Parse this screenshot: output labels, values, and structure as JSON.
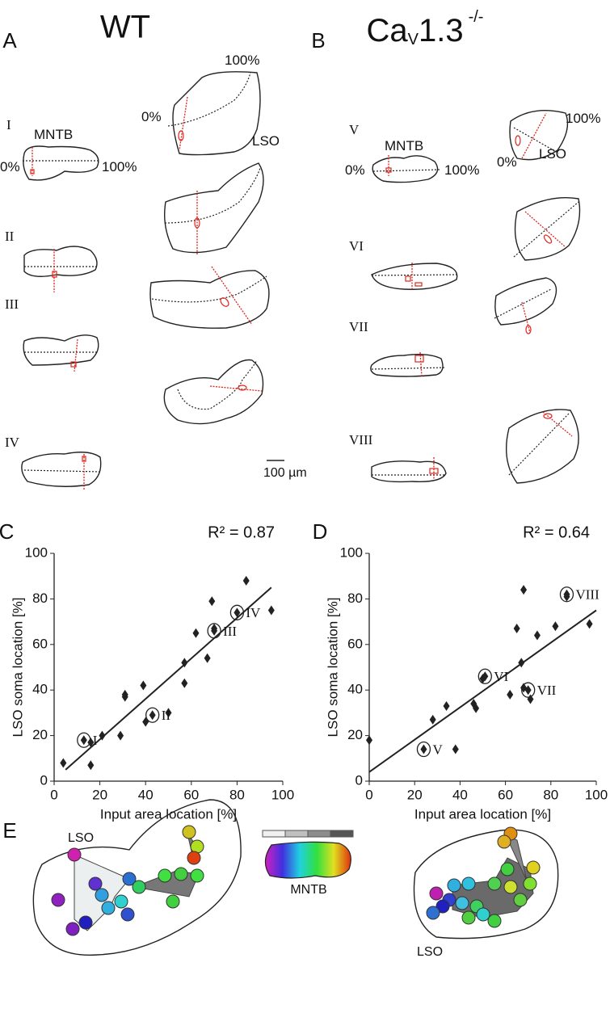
{
  "panel_a": {
    "label": "A",
    "title": "WT",
    "mntb": "MNTB",
    "lso": "LSO",
    "mntb_zero": "0%",
    "mntb_hundred": "100%",
    "lso_zero": "0%",
    "lso_hundred": "100%",
    "rows": [
      "I",
      "II",
      "III",
      "IV"
    ]
  },
  "panel_b": {
    "label": "B",
    "title_main": "Ca",
    "title_sub": "V",
    "title_rest": "1.3",
    "title_sup": "-/-",
    "mntb": "MNTB",
    "lso": "LSO",
    "mntb_zero": "0%",
    "mntb_hundred": "100%",
    "lso_zero": "0%",
    "lso_hundred": "100%",
    "rows": [
      "V",
      "VI",
      "VII",
      "VIII"
    ]
  },
  "scale_bar": "100 µm",
  "chart_data": [
    {
      "type": "scatter",
      "label": "C",
      "annotation": "R² = 0.87",
      "xlabel": "Input area location [%]",
      "ylabel": "LSO soma location [%]",
      "color": "#222222",
      "xlim": [
        0,
        100
      ],
      "xticks": [
        0,
        20,
        40,
        60,
        80,
        100
      ],
      "ylim": [
        0,
        100
      ],
      "yticks": [
        0,
        20,
        40,
        60,
        80,
        100
      ],
      "x": [
        4,
        13,
        16,
        16,
        21,
        29,
        31,
        31,
        39,
        40,
        43,
        50,
        57,
        57,
        62,
        67,
        69,
        70,
        70,
        80,
        84,
        95
      ],
      "y": [
        8,
        18,
        17,
        7,
        20,
        20,
        38,
        37,
        42,
        26,
        29,
        30,
        52,
        43,
        65,
        54,
        79,
        66,
        67,
        74,
        88,
        75
      ],
      "fit": {
        "x": [
          5,
          95
        ],
        "y": [
          5,
          85
        ]
      },
      "labeled_points": [
        {
          "label": "I",
          "x": 13,
          "y": 18
        },
        {
          "label": "II",
          "x": 43,
          "y": 29
        },
        {
          "label": "III",
          "x": 70,
          "y": 66
        },
        {
          "label": "IV",
          "x": 80,
          "y": 74
        }
      ]
    },
    {
      "type": "scatter",
      "label": "D",
      "annotation": "R² = 0.64",
      "xlabel": "Input area location [%]",
      "ylabel": "LSO soma location [%]",
      "color": "#222222",
      "xlim": [
        0,
        100
      ],
      "xticks": [
        0,
        20,
        40,
        60,
        80,
        100
      ],
      "ylim": [
        0,
        100
      ],
      "yticks": [
        0,
        20,
        40,
        60,
        80,
        100
      ],
      "x": [
        0,
        24,
        28,
        34,
        38,
        46,
        47,
        50,
        51,
        62,
        65,
        67,
        68,
        68,
        70,
        71,
        74,
        82,
        87,
        87,
        97
      ],
      "y": [
        18,
        14,
        27,
        33,
        14,
        34,
        32,
        45,
        46,
        38,
        67,
        52,
        84,
        41,
        40,
        36,
        64,
        68,
        82,
        81,
        69
      ],
      "fit": {
        "x": [
          0,
          100
        ],
        "y": [
          4,
          75
        ]
      },
      "labeled_points": [
        {
          "label": "V",
          "x": 24,
          "y": 14
        },
        {
          "label": "VI",
          "x": 51,
          "y": 46
        },
        {
          "label": "VII",
          "x": 70,
          "y": 40
        },
        {
          "label": "VIII",
          "x": 87,
          "y": 82
        }
      ]
    }
  ],
  "panel_e": {
    "label": "E",
    "lso_left": "LSO",
    "mntb": "MNTB",
    "lso_right": "LSO"
  }
}
